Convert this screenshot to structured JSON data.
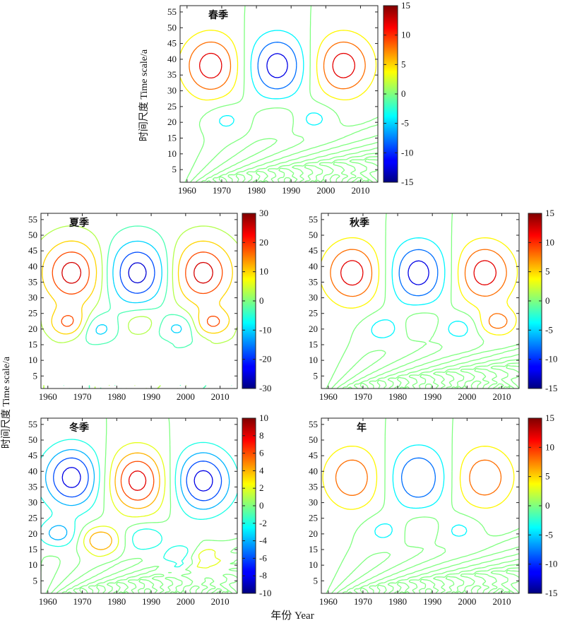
{
  "figure": {
    "x_axis_label": "年份 Year",
    "y_axis_label_top": "时间尺度 Time scale/a",
    "y_axis_label_bottom": "时间尺度 Time scale/a"
  },
  "chart_data": [
    {
      "type": "heatmap",
      "subtype": "contour",
      "title": "春季",
      "xlim": [
        1958,
        2015
      ],
      "ylim": [
        1,
        57
      ],
      "x_ticks": [
        1960,
        1970,
        1980,
        1990,
        2000,
        2010
      ],
      "y_ticks": [
        5,
        10,
        15,
        20,
        25,
        30,
        35,
        40,
        45,
        50,
        55
      ],
      "colorbar": {
        "min": -15,
        "max": 15,
        "ticks": [
          -15,
          -10,
          -5,
          0,
          5,
          10,
          15
        ]
      },
      "contour_levels": [
        -12,
        -8,
        -4,
        0,
        4,
        8,
        12
      ],
      "amplitude": 14,
      "centers": [
        {
          "x": 1967,
          "y": 38,
          "value": 14
        },
        {
          "x": 1986,
          "y": 38,
          "value": -14
        },
        {
          "x": 2005,
          "y": 38,
          "value": 14
        },
        {
          "x": 1971,
          "y": 21,
          "value": -5
        },
        {
          "x": 1986,
          "y": 21,
          "value": 4
        },
        {
          "x": 1997,
          "y": 21,
          "value": -5
        }
      ]
    },
    {
      "type": "heatmap",
      "subtype": "contour",
      "title": "夏季",
      "xlim": [
        1958,
        2015
      ],
      "ylim": [
        1,
        57
      ],
      "x_ticks": [
        1960,
        1970,
        1980,
        1990,
        2000,
        2010
      ],
      "y_ticks": [
        5,
        10,
        15,
        20,
        25,
        30,
        35,
        40,
        45,
        50,
        55
      ],
      "colorbar": {
        "min": -30,
        "max": 30,
        "ticks": [
          -30,
          -20,
          -10,
          0,
          10,
          20,
          30
        ]
      },
      "contour_levels": [
        -25,
        -18,
        -10,
        -3,
        3,
        10,
        18,
        25
      ],
      "amplitude": 28,
      "centers": [
        {
          "x": 1967,
          "y": 38,
          "value": 28
        },
        {
          "x": 1986,
          "y": 38,
          "value": -28
        },
        {
          "x": 2005,
          "y": 38,
          "value": 28
        },
        {
          "x": 1966,
          "y": 22,
          "value": 18
        },
        {
          "x": 1975,
          "y": 20,
          "value": -12
        },
        {
          "x": 1987,
          "y": 22,
          "value": 8
        },
        {
          "x": 1998,
          "y": 20,
          "value": -12
        },
        {
          "x": 2008,
          "y": 22,
          "value": 18
        }
      ]
    },
    {
      "type": "heatmap",
      "subtype": "contour",
      "title": "秋季",
      "xlim": [
        1958,
        2015
      ],
      "ylim": [
        1,
        57
      ],
      "x_ticks": [
        1960,
        1970,
        1980,
        1990,
        2000,
        2010
      ],
      "y_ticks": [
        5,
        10,
        15,
        20,
        25,
        30,
        35,
        40,
        45,
        50,
        55
      ],
      "colorbar": {
        "min": -15,
        "max": 15,
        "ticks": [
          -15,
          -10,
          -5,
          0,
          5,
          10,
          15
        ]
      },
      "contour_levels": [
        -12,
        -8,
        -4,
        0,
        4,
        8,
        12
      ],
      "amplitude": 14,
      "centers": [
        {
          "x": 1967,
          "y": 38,
          "value": 14
        },
        {
          "x": 1986,
          "y": 38,
          "value": -14
        },
        {
          "x": 2005,
          "y": 38,
          "value": 14
        },
        {
          "x": 1976,
          "y": 20,
          "value": -6
        },
        {
          "x": 1987,
          "y": 22,
          "value": 4
        },
        {
          "x": 1998,
          "y": 20,
          "value": -6
        },
        {
          "x": 2009,
          "y": 22,
          "value": 9
        }
      ]
    },
    {
      "type": "heatmap",
      "subtype": "contour",
      "title": "冬季",
      "xlim": [
        1958,
        2015
      ],
      "ylim": [
        1,
        57
      ],
      "x_ticks": [
        1960,
        1970,
        1980,
        1990,
        2000,
        2010
      ],
      "y_ticks": [
        5,
        10,
        15,
        20,
        25,
        30,
        35,
        40,
        45,
        50,
        55
      ],
      "colorbar": {
        "min": -10,
        "max": 10,
        "ticks": [
          -10,
          -8,
          -6,
          -4,
          -2,
          0,
          2,
          4,
          6,
          8,
          10
        ]
      },
      "contour_levels": [
        -8,
        -6,
        -4,
        -2,
        0,
        2,
        4,
        6,
        8
      ],
      "amplitude": 9,
      "centers": [
        {
          "x": 1967,
          "y": 38,
          "value": -9
        },
        {
          "x": 1986,
          "y": 37,
          "value": 9
        },
        {
          "x": 2005,
          "y": 37,
          "value": -9
        },
        {
          "x": 1975,
          "y": 18,
          "value": 6
        },
        {
          "x": 1988,
          "y": 19,
          "value": -4
        },
        {
          "x": 1999,
          "y": 13,
          "value": -4
        },
        {
          "x": 2005,
          "y": 12,
          "value": 4
        },
        {
          "x": 1963,
          "y": 20,
          "value": -5
        }
      ]
    },
    {
      "type": "heatmap",
      "subtype": "contour",
      "title": "年",
      "xlim": [
        1958,
        2015
      ],
      "ylim": [
        1,
        57
      ],
      "x_ticks": [
        1960,
        1970,
        1980,
        1990,
        2000,
        2010
      ],
      "y_ticks": [
        5,
        10,
        15,
        20,
        25,
        30,
        35,
        40,
        45,
        50,
        55
      ],
      "colorbar": {
        "min": -15,
        "max": 15,
        "ticks": [
          -15,
          -10,
          -5,
          0,
          5,
          10,
          15
        ]
      },
      "contour_levels": [
        -12,
        -8,
        -4,
        0,
        4,
        8,
        12
      ],
      "amplitude": 12,
      "centers": [
        {
          "x": 1967,
          "y": 38,
          "value": 11
        },
        {
          "x": 1986,
          "y": 38,
          "value": -12
        },
        {
          "x": 2005,
          "y": 38,
          "value": 11
        },
        {
          "x": 1976,
          "y": 21,
          "value": -5
        },
        {
          "x": 1987,
          "y": 22,
          "value": 4
        },
        {
          "x": 1998,
          "y": 21,
          "value": -5
        }
      ]
    }
  ]
}
